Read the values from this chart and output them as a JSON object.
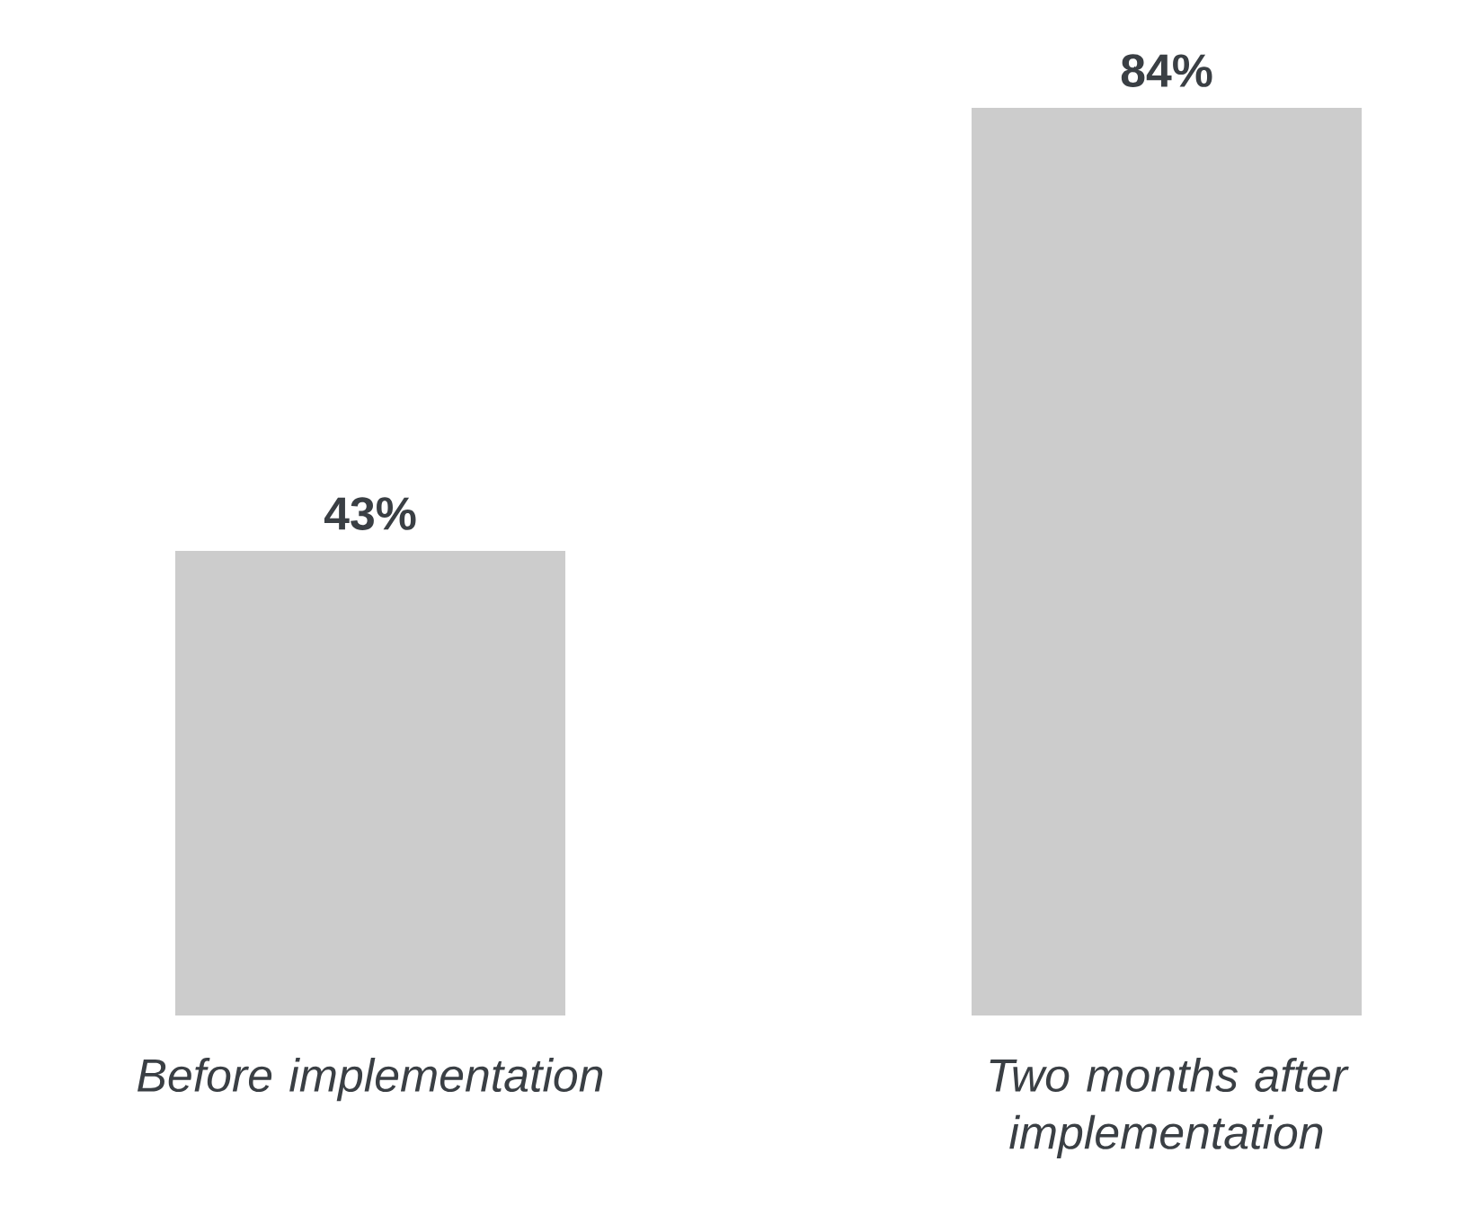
{
  "chart_data": {
    "type": "bar",
    "categories": [
      "Before implementation",
      "Two months after implementation"
    ],
    "values": [
      43,
      84
    ],
    "color": "#cccccc",
    "value_labels": [
      "43%",
      "84%"
    ]
  }
}
